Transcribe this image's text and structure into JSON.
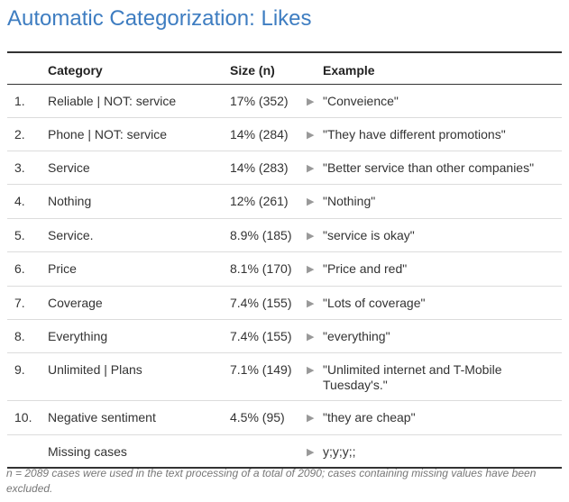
{
  "title": "Automatic Categorization: Likes",
  "table": {
    "headers": {
      "num": "",
      "category": "Category",
      "size": "Size (n)",
      "example": "Example"
    },
    "rows": [
      {
        "num": "1.",
        "category": "Reliable | NOT: service",
        "size": "17% (352)",
        "example": "\"Conveience\""
      },
      {
        "num": "2.",
        "category": "Phone | NOT: service",
        "size": "14% (284)",
        "example": "\"They have different promotions\""
      },
      {
        "num": "3.",
        "category": "Service",
        "size": "14% (283)",
        "example": "\"Better service than other companies\""
      },
      {
        "num": "4.",
        "category": "Nothing",
        "size": "12% (261)",
        "example": "\"Nothing\""
      },
      {
        "num": "5.",
        "category": "Service.",
        "size": "8.9% (185)",
        "example": "\"service is okay\""
      },
      {
        "num": "6.",
        "category": "Price",
        "size": "8.1% (170)",
        "example": "\"Price and red\""
      },
      {
        "num": "7.",
        "category": "Coverage",
        "size": "7.4% (155)",
        "example": "\"Lots of coverage\""
      },
      {
        "num": "8.",
        "category": "Everything",
        "size": "7.4% (155)",
        "example": "\"everything\""
      },
      {
        "num": "9.",
        "category": "Unlimited | Plans",
        "size": "7.1% (149)",
        "example": "\"Unlimited internet and T-Mobile Tuesday's.\""
      },
      {
        "num": "10.",
        "category": "Negative sentiment",
        "size": "4.5% (95)",
        "example": "\"they are cheap\""
      },
      {
        "num": "",
        "category": "Missing cases",
        "size": "",
        "example": "y;y;y;;"
      }
    ]
  },
  "footnote": "n = 2089 cases were used in the text processing of a total of 2090; cases containing missing values have been excluded.",
  "arrow_icon": "triangle-right-icon",
  "colors": {
    "title": "#3e7dc1",
    "rule": "#333333",
    "row_divider": "#dcdcdc",
    "arrow": "#999999",
    "footnote": "#777777"
  }
}
